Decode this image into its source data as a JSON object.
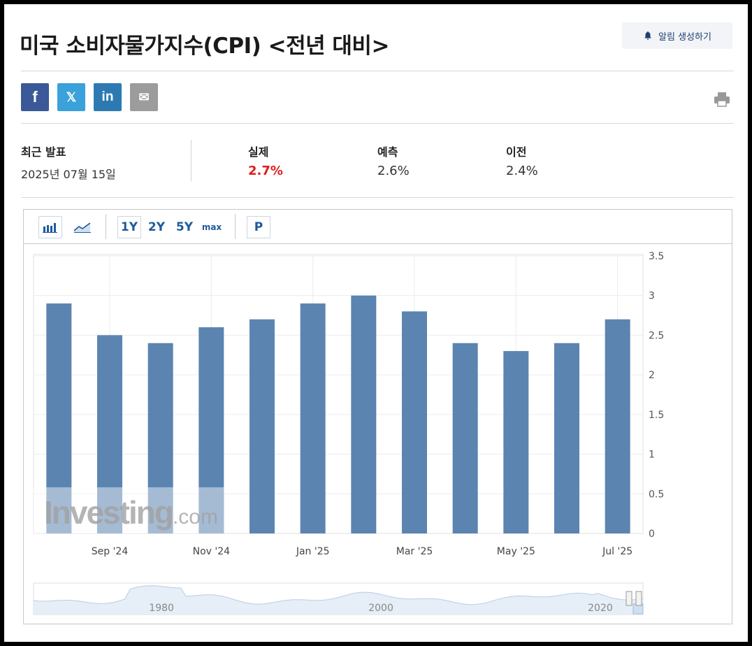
{
  "header": {
    "title": "미국 소비자물가지수(CPI) <전년 대비>",
    "alert_label": "알림 생성하기"
  },
  "social": [
    {
      "name": "facebook",
      "glyph": "f",
      "color": "#3b5998"
    },
    {
      "name": "x",
      "glyph": "𝕏",
      "color": "#3aa1da"
    },
    {
      "name": "linkedin",
      "glyph": "in",
      "color": "#2d7ab3"
    },
    {
      "name": "email",
      "glyph": "✉",
      "color": "#9c9c9c"
    }
  ],
  "stats": {
    "latest_label": "최근 발표",
    "latest_date": "2025년 07월 15일",
    "actual_label": "실제",
    "actual_value": "2.7%",
    "actual_color": "#e01e1e",
    "forecast_label": "예측",
    "forecast_value": "2.6%",
    "previous_label": "이전",
    "previous_value": "2.4%"
  },
  "toolbar": {
    "ranges": [
      "1Y",
      "2Y",
      "5Y",
      "max"
    ],
    "p_label": "P",
    "selected_range": "1Y"
  },
  "chart_data": {
    "type": "bar",
    "categories": [
      "Aug '24",
      "Sep '24",
      "Oct '24",
      "Nov '24",
      "Dec '24",
      "Jan '25",
      "Feb '25",
      "Mar '25",
      "Apr '25",
      "May '25",
      "Jun '25",
      "Jul '25"
    ],
    "values": [
      2.9,
      2.5,
      2.4,
      2.6,
      2.7,
      2.9,
      3.0,
      2.8,
      2.4,
      2.3,
      2.4,
      2.7
    ],
    "x_tick_labels": [
      "Sep '24",
      "Nov '24",
      "Jan '25",
      "Mar '25",
      "May '25",
      "Jul '25"
    ],
    "y_ticks": [
      "0",
      "0.5",
      "1",
      "1.5",
      "2",
      "2.5",
      "3",
      "3.5"
    ],
    "ylim": [
      0,
      3.5
    ],
    "bar_color": "#5b84b1",
    "grid": true,
    "watermark": "Investing.com",
    "navigator_labels": [
      "1980",
      "2000",
      "2020"
    ]
  }
}
